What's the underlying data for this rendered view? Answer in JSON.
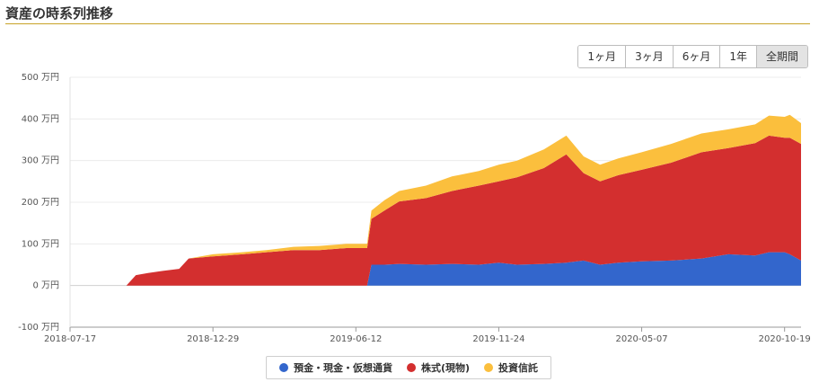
{
  "header": {
    "title": "資産の時系列推移"
  },
  "range_buttons": [
    {
      "label": "1ヶ月",
      "active": false
    },
    {
      "label": "3ヶ月",
      "active": false
    },
    {
      "label": "6ヶ月",
      "active": false
    },
    {
      "label": "1年",
      "active": false
    },
    {
      "label": "全期間",
      "active": true
    }
  ],
  "chart_data": {
    "type": "area",
    "stacked": true,
    "title": "",
    "xlabel": "",
    "ylabel": "",
    "y_unit": "万円",
    "ylim": [
      -100,
      500
    ],
    "yticks": [
      -100,
      0,
      100,
      200,
      300,
      400,
      500
    ],
    "ytick_labels": [
      "-100 万円",
      "0 万円",
      "100 万円",
      "200 万円",
      "300 万円",
      "400 万円",
      "500 万円"
    ],
    "xlim": [
      "2018-07-17",
      "2020-11-07"
    ],
    "xticks": [
      "2018-07-17",
      "2018-12-29",
      "2019-06-12",
      "2019-11-24",
      "2020-05-07",
      "2020-10-19"
    ],
    "grid": true,
    "legend_position": "bottom",
    "x": [
      "2018-07-17",
      "2018-09-01",
      "2018-09-20",
      "2018-10-01",
      "2018-10-15",
      "2018-11-01",
      "2018-11-20",
      "2018-12-01",
      "2018-12-29",
      "2019-02-01",
      "2019-03-01",
      "2019-04-01",
      "2019-05-01",
      "2019-06-01",
      "2019-06-25",
      "2019-06-30",
      "2019-07-15",
      "2019-08-01",
      "2019-09-01",
      "2019-10-01",
      "2019-11-01",
      "2019-11-24",
      "2019-12-15",
      "2020-01-15",
      "2020-02-10",
      "2020-03-01",
      "2020-03-20",
      "2020-04-10",
      "2020-05-07",
      "2020-06-10",
      "2020-07-15",
      "2020-08-15",
      "2020-09-15",
      "2020-10-01",
      "2020-10-19",
      "2020-10-25",
      "2020-11-07"
    ],
    "series": [
      {
        "name": "預金・現金・仮想通貨",
        "color": "#3366cc",
        "values": [
          0,
          0,
          0,
          0,
          0,
          0,
          0,
          0,
          0,
          0,
          0,
          0,
          0,
          0,
          0,
          50,
          50,
          52,
          50,
          52,
          50,
          55,
          50,
          52,
          55,
          60,
          50,
          55,
          58,
          60,
          65,
          75,
          72,
          80,
          80,
          75,
          60
        ]
      },
      {
        "name": "株式(現物)",
        "color": "#d32f2f",
        "values": [
          0,
          0,
          0,
          25,
          30,
          35,
          40,
          65,
          70,
          75,
          80,
          85,
          85,
          90,
          90,
          110,
          130,
          150,
          160,
          175,
          190,
          195,
          210,
          230,
          260,
          210,
          200,
          210,
          220,
          235,
          255,
          255,
          270,
          280,
          275,
          280,
          280
        ]
      },
      {
        "name": "投資信託",
        "color": "#fbbf3d",
        "values": [
          0,
          0,
          0,
          0,
          0,
          0,
          0,
          0,
          5,
          5,
          5,
          8,
          10,
          10,
          10,
          20,
          25,
          25,
          30,
          35,
          35,
          40,
          40,
          45,
          45,
          40,
          40,
          40,
          42,
          45,
          45,
          45,
          45,
          48,
          50,
          55,
          50
        ]
      }
    ]
  },
  "legend_label": "legend"
}
